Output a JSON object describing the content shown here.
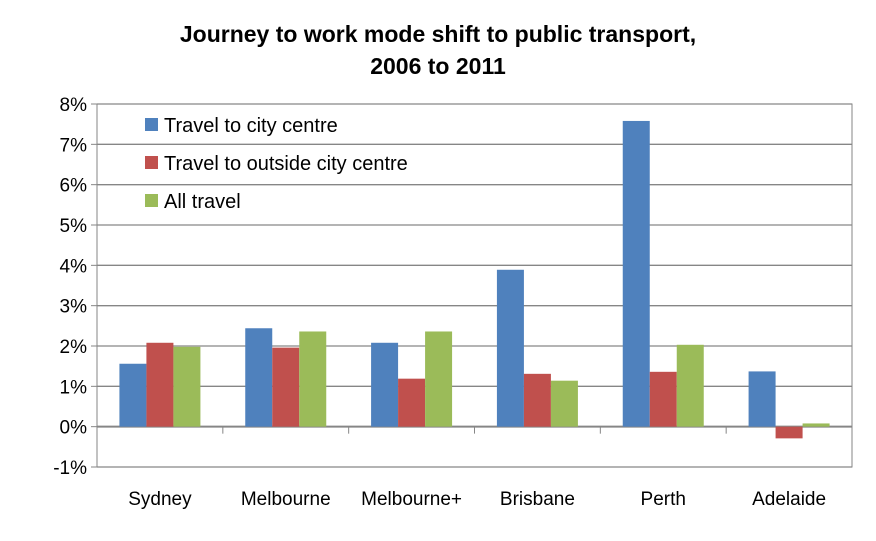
{
  "chart_data": {
    "type": "bar",
    "title_lines": [
      "Journey to work mode shift to public transport,",
      "2006 to 2011"
    ],
    "categories": [
      "Sydney",
      "Melbourne",
      "Melbourne+",
      "Brisbane",
      "Perth",
      "Adelaide"
    ],
    "series": [
      {
        "name": "Travel to city centre",
        "color": "#4F81BD",
        "values": [
          1.56,
          2.44,
          2.08,
          3.89,
          7.58,
          1.37
        ]
      },
      {
        "name": "Travel to outside city centre",
        "color": "#C0504D",
        "values": [
          2.08,
          1.96,
          1.19,
          1.31,
          1.36,
          -0.29
        ]
      },
      {
        "name": "All travel",
        "color": "#9BBB59",
        "values": [
          1.98,
          2.36,
          2.36,
          1.14,
          2.03,
          0.08
        ]
      }
    ],
    "yticks": [
      "-1%",
      "0%",
      "1%",
      "2%",
      "3%",
      "4%",
      "5%",
      "6%",
      "7%",
      "8%"
    ],
    "ylim": [
      -1,
      8
    ],
    "xlabel": "",
    "ylabel": "",
    "grid": true,
    "legend_position": "top-left"
  }
}
